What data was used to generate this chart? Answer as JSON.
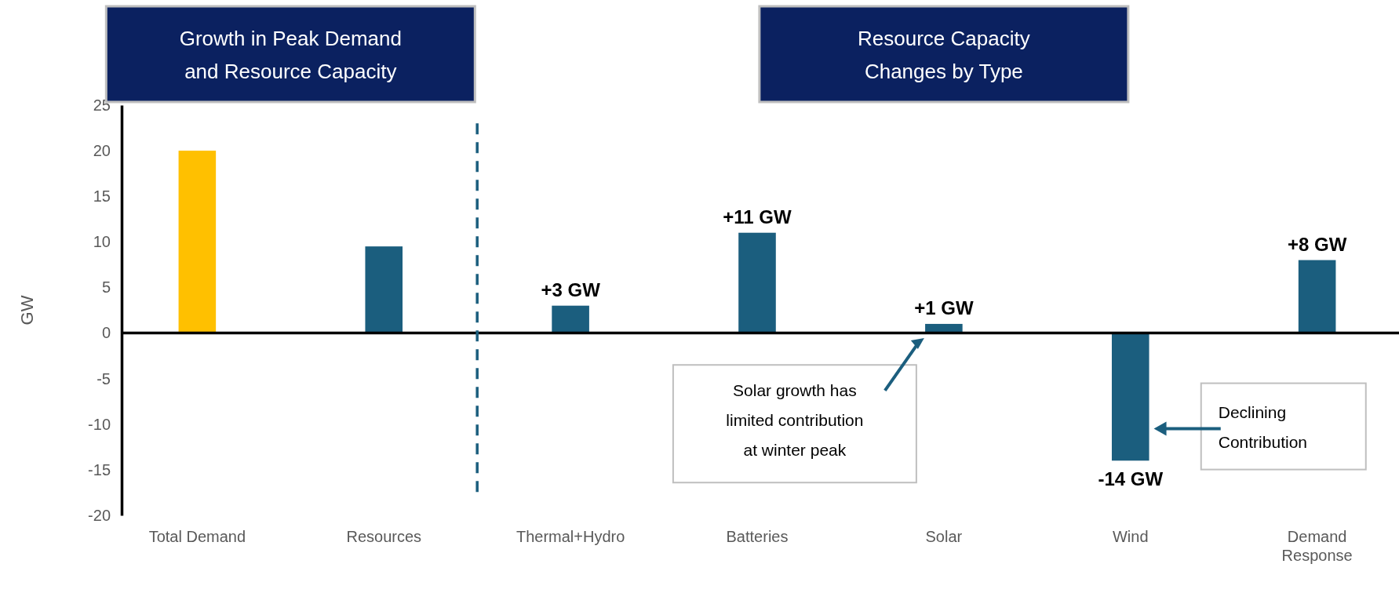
{
  "chart_data": {
    "type": "bar",
    "ylabel": "GW",
    "categories": [
      "Total Demand",
      "Resources",
      "Thermal+Hydro",
      "Batteries",
      "Solar",
      "Wind",
      "Demand Response"
    ],
    "values": [
      20,
      9.5,
      3,
      11,
      1,
      -14,
      8
    ],
    "colors": [
      "#ffc000",
      "#1b5e7e",
      "#1b5e7e",
      "#1b5e7e",
      "#1b5e7e",
      "#1b5e7e",
      "#1b5e7e"
    ],
    "value_labels": [
      null,
      null,
      "+3 GW",
      "+11 GW",
      "+1 GW",
      "-14 GW",
      "+8 GW"
    ],
    "ylim": [
      -20,
      25
    ],
    "yticks": [
      -20,
      -15,
      -10,
      -5,
      0,
      5,
      10,
      15,
      20,
      25
    ],
    "annotations": [
      "Growth in Peak Demand and Resource Capacity",
      "Resource Capacity Changes by Type",
      "Solar growth has limited  contribution at winter peak",
      "Declining Contribution"
    ]
  }
}
